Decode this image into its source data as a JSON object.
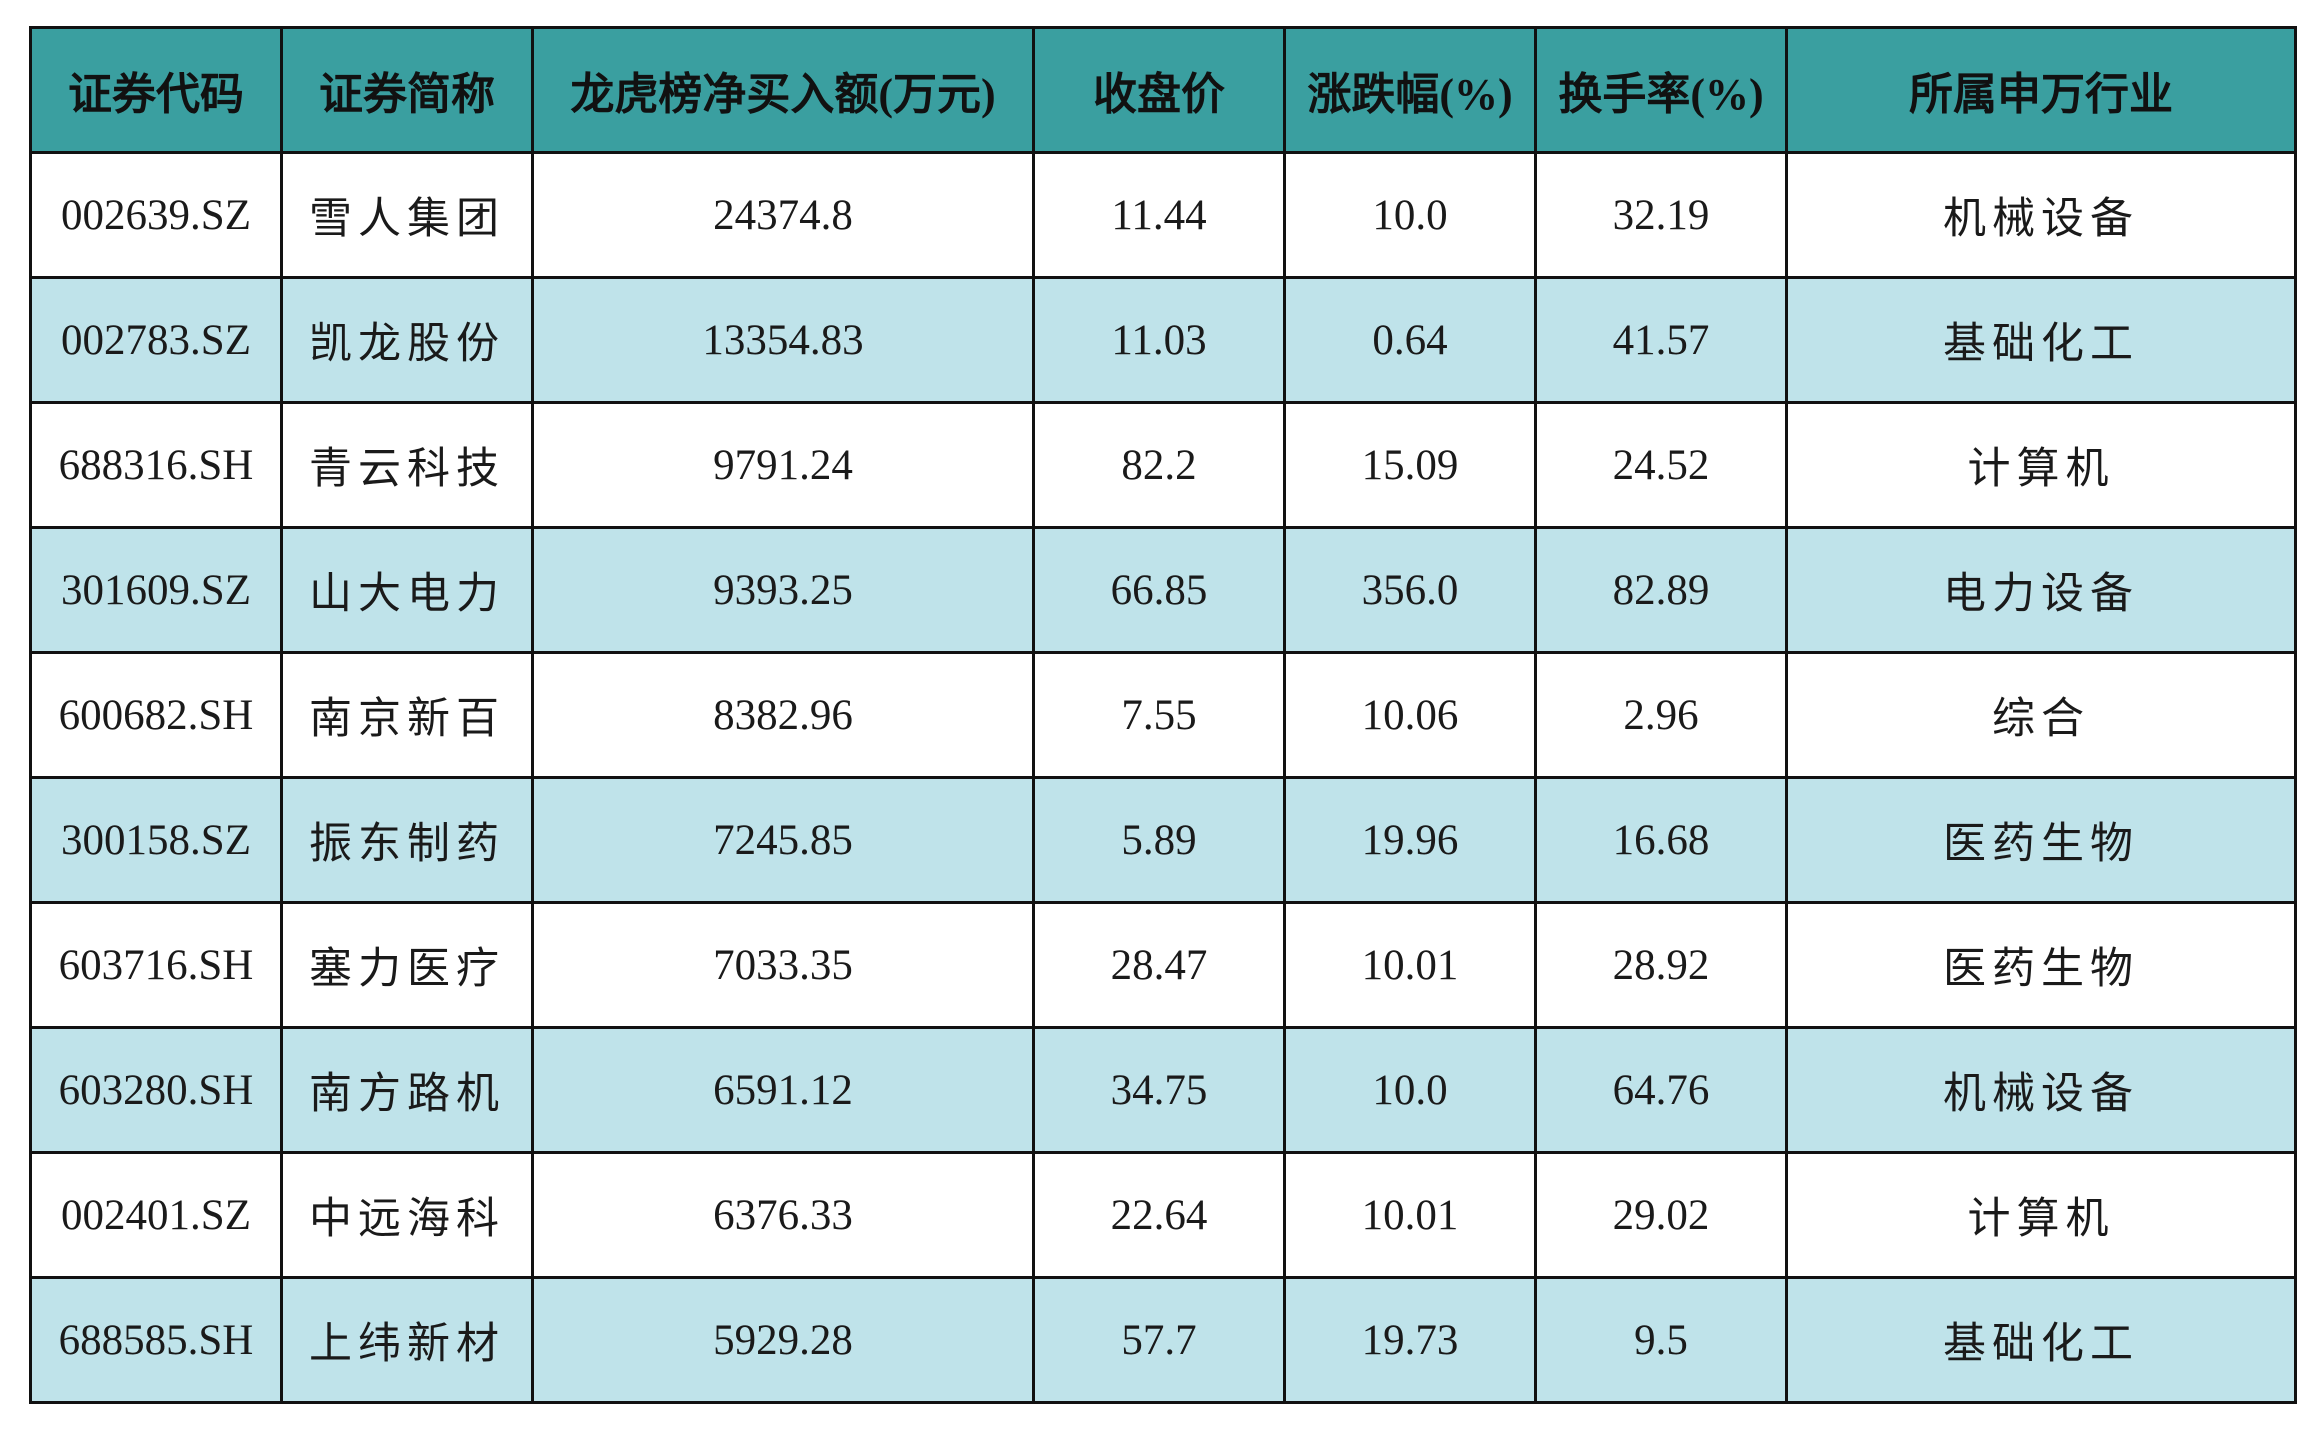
{
  "table": {
    "headers": [
      "证券代码",
      "证券简称",
      "龙虎榜净买入额(万元)",
      "收盘价",
      "涨跌幅(%)",
      "换手率(%)",
      "所属申万行业"
    ],
    "rows": [
      [
        "002639.SZ",
        "雪人集团",
        "24374.8",
        "11.44",
        "10.0",
        "32.19",
        "机械设备"
      ],
      [
        "002783.SZ",
        "凯龙股份",
        "13354.83",
        "11.03",
        "0.64",
        "41.57",
        "基础化工"
      ],
      [
        "688316.SH",
        "青云科技",
        "9791.24",
        "82.2",
        "15.09",
        "24.52",
        "计算机"
      ],
      [
        "301609.SZ",
        "山大电力",
        "9393.25",
        "66.85",
        "356.0",
        "82.89",
        "电力设备"
      ],
      [
        "600682.SH",
        "南京新百",
        "8382.96",
        "7.55",
        "10.06",
        "2.96",
        "综合"
      ],
      [
        "300158.SZ",
        "振东制药",
        "7245.85",
        "5.89",
        "19.96",
        "16.68",
        "医药生物"
      ],
      [
        "603716.SH",
        "塞力医疗",
        "7033.35",
        "28.47",
        "10.01",
        "28.92",
        "医药生物"
      ],
      [
        "603280.SH",
        "南方路机",
        "6591.12",
        "34.75",
        "10.0",
        "64.76",
        "机械设备"
      ],
      [
        "002401.SZ",
        "中远海科",
        "6376.33",
        "22.64",
        "10.01",
        "29.02",
        "计算机"
      ],
      [
        "688585.SH",
        "上纬新材",
        "5929.28",
        "57.7",
        "19.73",
        "9.5",
        "基础化工"
      ]
    ]
  },
  "colors": {
    "header_bg": "#3a9fa0",
    "row_alt_bg": "#bfe3ea",
    "row_bg": "#ffffff",
    "border": "#111111"
  }
}
